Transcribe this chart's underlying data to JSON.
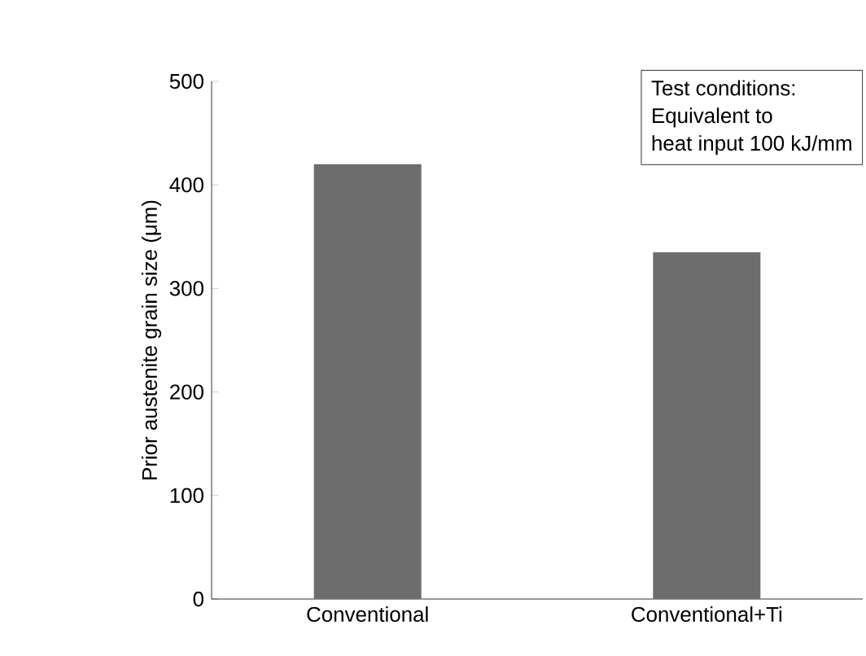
{
  "chart_data": {
    "type": "bar",
    "ylabel": "Prior austenite grain size (μm)",
    "categories": [
      "Conventional",
      "Conventional+Ti"
    ],
    "values": [
      420,
      335
    ],
    "color": "#6d6d6d",
    "ylim": [
      0,
      500
    ],
    "yticks": [
      0,
      100,
      200,
      300,
      400,
      500
    ],
    "annotations": [
      "Test conditions:",
      "Equivalent to",
      "heat input 100 kJ/mm"
    ]
  }
}
